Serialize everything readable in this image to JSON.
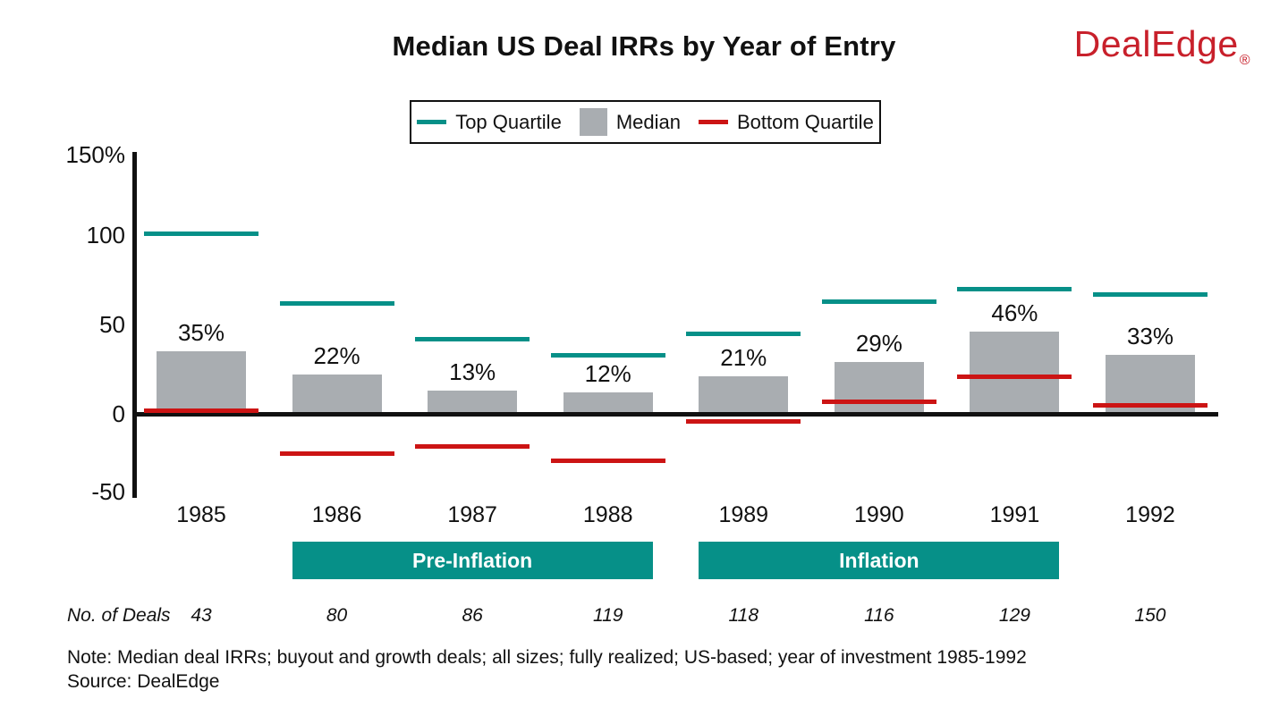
{
  "header": {
    "title": "Median US Deal IRRs by Year of Entry",
    "logo_text": "DealEdge",
    "logo_registered": "®"
  },
  "legend": {
    "top_quartile": "Top Quartile",
    "median": "Median",
    "bottom_quartile": "Bottom Quartile"
  },
  "colors": {
    "teal": "#069088",
    "gray": "#A9ADB1",
    "red": "#CC1414",
    "logo_red": "#C8202B",
    "axis": "#111111"
  },
  "chart_data": {
    "type": "bar",
    "title": "Median US Deal IRRs by Year of Entry",
    "categories": [
      "1985",
      "1986",
      "1987",
      "1988",
      "1989",
      "1990",
      "1991",
      "1992"
    ],
    "series": [
      {
        "name": "Top Quartile",
        "mark": "tick-line",
        "color_key": "teal",
        "values": [
          101,
          62,
          42,
          33,
          45,
          63,
          70,
          67
        ]
      },
      {
        "name": "Median",
        "mark": "bar",
        "color_key": "gray",
        "values": [
          35,
          22,
          13,
          12,
          21,
          29,
          46,
          33
        ],
        "labels": [
          "35%",
          "22%",
          "13%",
          "12%",
          "21%",
          "29%",
          "46%",
          "33%"
        ]
      },
      {
        "name": "Bottom Quartile",
        "mark": "tick-line",
        "color_key": "red",
        "values": [
          2,
          -22,
          -18,
          -26,
          -4,
          7,
          21,
          5
        ]
      }
    ],
    "y_ticks": [
      {
        "label": "150%",
        "value": 150
      },
      {
        "label": "100",
        "value": 100
      },
      {
        "label": "50",
        "value": 50
      },
      {
        "label": "0",
        "value": 0
      },
      {
        "label": "-50",
        "value": -50
      }
    ],
    "ylim": [
      -50,
      150
    ],
    "grid": false,
    "legend_position": "top",
    "era_bands": [
      {
        "label": "Pre-Inflation",
        "from": "1986",
        "to": "1988"
      },
      {
        "label": "Inflation",
        "from": "1989",
        "to": "1991"
      }
    ],
    "deal_counts": {
      "label": "No. of Deals",
      "values": [
        43,
        80,
        86,
        119,
        118,
        116,
        129,
        150
      ]
    }
  },
  "footer": {
    "note": "Note: Median deal IRRs; buyout and growth deals; all sizes; fully realized; US-based; year of investment 1985-1992",
    "source": "Source: DealEdge"
  }
}
